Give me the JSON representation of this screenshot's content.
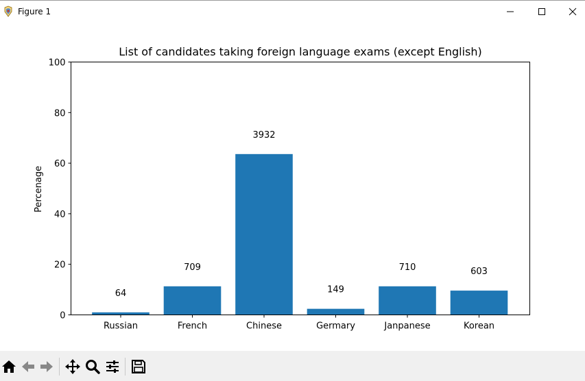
{
  "window": {
    "title": "Figure 1",
    "controls": [
      "minimize-icon",
      "maximize-icon",
      "close-icon"
    ]
  },
  "toolbar": {
    "buttons": [
      "home-icon",
      "back-icon",
      "forward-icon",
      "pan-icon",
      "zoom-icon",
      "configure-subplots-icon",
      "save-icon"
    ]
  },
  "chart_data": {
    "type": "bar",
    "title": "List of candidates taking foreign language exams (except English)",
    "xlabel": "",
    "ylabel": "Percenage",
    "ylim": [
      0,
      100
    ],
    "yticks": [
      0,
      20,
      40,
      60,
      80,
      100
    ],
    "categories": [
      "Russian",
      "French",
      "Chinese",
      "Germary",
      "Janpanese",
      "Korean"
    ],
    "values": [
      1.0,
      11.3,
      63.6,
      2.4,
      11.3,
      9.6
    ],
    "data_labels": [
      "64",
      "709",
      "3932",
      "149",
      "710",
      "603"
    ],
    "bar_color": "#1f77b4",
    "grid": false
  }
}
